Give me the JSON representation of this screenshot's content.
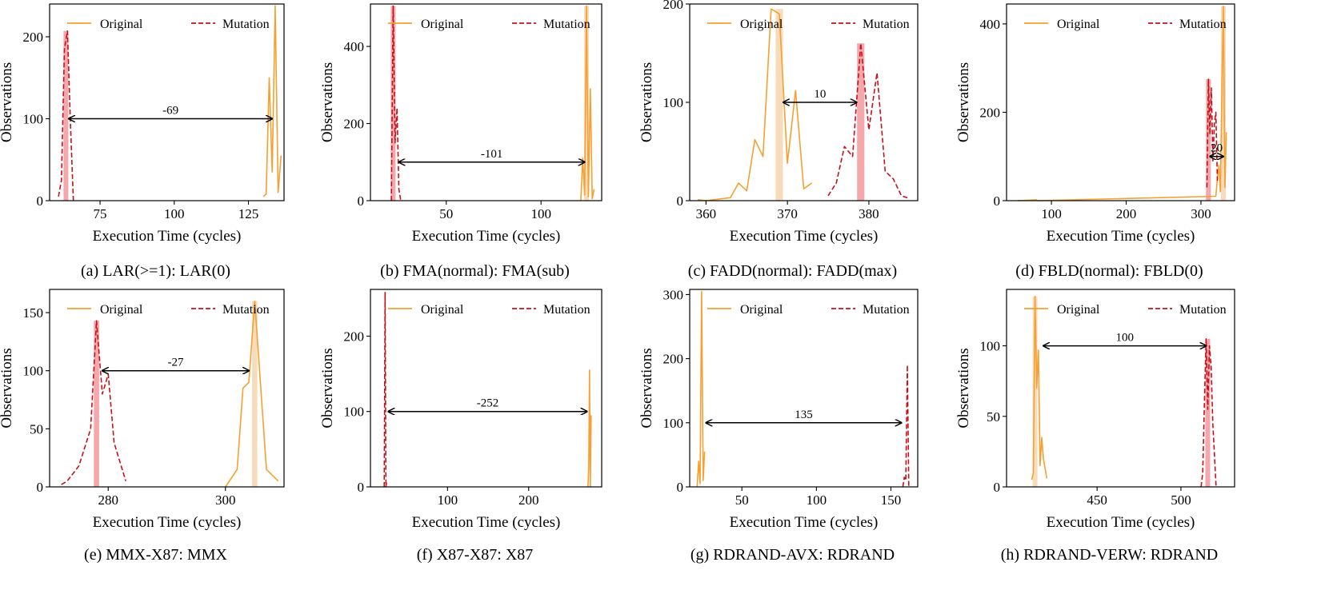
{
  "figure": {
    "panel_count": 8
  },
  "colors": {
    "original": "#f5a030",
    "mutation": "#c8101a",
    "original_bar": "#f7dcbc",
    "mutation_bar": "#f5a8ac",
    "arrow": "#000000"
  },
  "chart_data": [
    {
      "type": "line",
      "caption": "(a) LAR(>=1): LAR(0)",
      "xlabel": "Execution Time (cycles)",
      "ylabel": "Observations",
      "xlim": [
        58,
        137
      ],
      "ylim": [
        0,
        240
      ],
      "xticks": [
        75,
        100,
        125
      ],
      "yticks": [
        0,
        100,
        200
      ],
      "legend": [
        "Original",
        "Mutation"
      ],
      "series": [
        {
          "name": "Original",
          "style": "solid",
          "x": [
            130,
            131,
            132,
            133,
            134,
            135,
            136
          ],
          "y": [
            5,
            8,
            150,
            35,
            238,
            10,
            55
          ]
        },
        {
          "name": "Mutation",
          "style": "dashed",
          "x": [
            61,
            62,
            63,
            64,
            65,
            66
          ],
          "y": [
            5,
            25,
            185,
            207,
            95,
            0
          ]
        }
      ],
      "bars": [
        {
          "series": "Mutation",
          "x": 63.5,
          "height": 207
        }
      ],
      "arrow": {
        "from": 64.5,
        "to": 133,
        "y": 100,
        "label": "-69"
      }
    },
    {
      "type": "line",
      "caption": "(b) FMA(normal): FMA(sub)",
      "xlabel": "Execution Time (cycles)",
      "ylabel": "Observations",
      "xlim": [
        10,
        132
      ],
      "ylim": [
        0,
        510
      ],
      "xticks": [
        50,
        100
      ],
      "yticks": [
        0,
        200,
        400
      ],
      "legend": [
        "Original",
        "Mutation"
      ],
      "series": [
        {
          "name": "Original",
          "style": "solid",
          "x": [
            121,
            122,
            123,
            124,
            125,
            126,
            127,
            128
          ],
          "y": [
            0,
            110,
            15,
            505,
            10,
            290,
            5,
            30
          ]
        },
        {
          "name": "Mutation",
          "style": "dashed",
          "x": [
            21,
            22,
            23,
            24,
            25,
            26
          ],
          "y": [
            0,
            505,
            150,
            240,
            30,
            0
          ]
        }
      ],
      "bars": [
        {
          "series": "Original",
          "x": 124,
          "height": 505
        },
        {
          "series": "Mutation",
          "x": 22,
          "height": 505
        }
      ],
      "arrow": {
        "from": 25,
        "to": 123,
        "y": 100,
        "label": "-101"
      }
    },
    {
      "type": "line",
      "caption": "(c) FADD(normal): FADD(max)",
      "xlabel": "Execution Time (cycles)",
      "ylabel": "Observations",
      "xlim": [
        358,
        386
      ],
      "ylim": [
        0,
        200
      ],
      "xticks": [
        360,
        370,
        380
      ],
      "yticks": [
        0,
        100,
        200
      ],
      "legend": [
        "Original",
        "Mutation"
      ],
      "series": [
        {
          "name": "Original",
          "style": "solid",
          "x": [
            359,
            360,
            362,
            363,
            364,
            365,
            366,
            367,
            368,
            369,
            370,
            371,
            372,
            373
          ],
          "y": [
            1,
            0,
            2,
            3,
            18,
            10,
            62,
            45,
            195,
            190,
            38,
            112,
            12,
            18
          ]
        },
        {
          "name": "Mutation",
          "style": "dashed",
          "x": [
            375,
            376,
            377,
            378,
            379,
            380,
            381,
            382,
            383,
            384,
            385
          ],
          "y": [
            5,
            18,
            55,
            45,
            160,
            72,
            130,
            30,
            22,
            5,
            2
          ]
        }
      ],
      "bars": [
        {
          "series": "Original",
          "x": 369,
          "height": 195
        },
        {
          "series": "Mutation",
          "x": 379,
          "height": 160
        }
      ],
      "arrow": {
        "from": 369.5,
        "to": 378.5,
        "y": 100,
        "label": "10"
      }
    },
    {
      "type": "line",
      "caption": "(d) FBLD(normal): FBLD(0)",
      "xlabel": "Execution Time (cycles)",
      "ylabel": "Observations",
      "xlim": [
        40,
        345
      ],
      "ylim": [
        0,
        445
      ],
      "xticks": [
        100,
        200,
        300
      ],
      "yticks": [
        0,
        200,
        400
      ],
      "legend": [
        "Original",
        "Mutation"
      ],
      "series": [
        {
          "name": "Original",
          "style": "solid",
          "x": [
            55,
            56,
            80,
            81,
            320,
            322,
            324,
            326,
            328,
            330,
            332,
            334
          ],
          "y": [
            1,
            0,
            2,
            0,
            10,
            50,
            80,
            20,
            245,
            440,
            30,
            155
          ]
        },
        {
          "name": "Mutation",
          "style": "dashed",
          "x": [
            308,
            310,
            312,
            314,
            316,
            318,
            320,
            322
          ],
          "y": [
            30,
            275,
            150,
            255,
            90,
            175,
            200,
            45
          ]
        }
      ],
      "bars": [
        {
          "series": "Original",
          "x": 330,
          "height": 440
        },
        {
          "series": "Mutation",
          "x": 310,
          "height": 275
        }
      ],
      "arrow": {
        "from": 312,
        "to": 330,
        "y": 100,
        "label": "20"
      }
    },
    {
      "type": "line",
      "caption": "(e) MMX-X87: MMX",
      "xlabel": "Execution Time (cycles)",
      "ylabel": "Observations",
      "xlim": [
        270,
        310
      ],
      "ylim": [
        0,
        170
      ],
      "xticks": [
        280,
        300
      ],
      "yticks": [
        0,
        50,
        100,
        150
      ],
      "legend": [
        "Original",
        "Mutation"
      ],
      "series": [
        {
          "name": "Original",
          "style": "solid",
          "x": [
            300,
            302,
            303,
            304,
            305,
            307,
            309
          ],
          "y": [
            0,
            15,
            85,
            90,
            160,
            15,
            5
          ]
        },
        {
          "name": "Mutation",
          "style": "dashed",
          "x": [
            272,
            273,
            275,
            277,
            278,
            279,
            280,
            281,
            283
          ],
          "y": [
            2,
            5,
            18,
            50,
            143,
            80,
            97,
            38,
            5
          ]
        }
      ],
      "bars": [
        {
          "series": "Original",
          "x": 305,
          "height": 160
        },
        {
          "series": "Mutation",
          "x": 278,
          "height": 143
        }
      ],
      "arrow": {
        "from": 279,
        "to": 304,
        "y": 100,
        "label": "-27"
      }
    },
    {
      "type": "line",
      "caption": "(f) X87-X87: X87",
      "xlabel": "Execution Time (cycles)",
      "ylabel": "Observations",
      "xlim": [
        5,
        290
      ],
      "ylim": [
        0,
        262
      ],
      "xticks": [
        100,
        200
      ],
      "yticks": [
        0,
        100,
        200
      ],
      "legend": [
        "Original",
        "Mutation"
      ],
      "series": [
        {
          "name": "Original",
          "style": "solid",
          "x": [
            273,
            274,
            275,
            276,
            277
          ],
          "y": [
            0,
            25,
            155,
            0,
            95
          ]
        },
        {
          "name": "Mutation",
          "style": "dashed",
          "x": [
            22,
            23,
            24,
            25
          ],
          "y": [
            0,
            258,
            0,
            8
          ]
        }
      ],
      "bars": [],
      "arrow": {
        "from": 27,
        "to": 272,
        "y": 100,
        "label": "-252"
      }
    },
    {
      "type": "line",
      "caption": "(g) RDRAND-AVX: RDRAND",
      "xlabel": "Execution Time (cycles)",
      "ylabel": "Observations",
      "xlim": [
        15,
        168
      ],
      "ylim": [
        0,
        308
      ],
      "xticks": [
        50,
        100,
        150
      ],
      "yticks": [
        0,
        100,
        200,
        300
      ],
      "legend": [
        "Original",
        "Mutation"
      ],
      "series": [
        {
          "name": "Original",
          "style": "solid",
          "x": [
            20,
            21,
            22,
            23,
            24,
            25
          ],
          "y": [
            0,
            40,
            5,
            305,
            10,
            55
          ]
        },
        {
          "name": "Mutation",
          "style": "dashed",
          "x": [
            158,
            159,
            160,
            161,
            162
          ],
          "y": [
            0,
            15,
            10,
            190,
            0
          ]
        }
      ],
      "bars": [],
      "arrow": {
        "from": 26,
        "to": 157,
        "y": 100,
        "label": "135"
      }
    },
    {
      "type": "line",
      "caption": "(h) RDRAND-VERW: RDRAND",
      "xlabel": "Execution Time (cycles)",
      "ylabel": "Observations",
      "xlim": [
        396,
        532
      ],
      "ylim": [
        0,
        140
      ],
      "xticks": [
        450,
        500
      ],
      "yticks": [
        0,
        50,
        100
      ],
      "legend": [
        "Original",
        "Mutation"
      ],
      "series": [
        {
          "name": "Original",
          "style": "solid",
          "x": [
            411,
            412,
            413,
            414,
            415,
            416,
            417,
            418,
            420
          ],
          "y": [
            5,
            10,
            135,
            70,
            97,
            15,
            35,
            20,
            6
          ]
        },
        {
          "name": "Mutation",
          "style": "dashed",
          "x": [
            512,
            513,
            514,
            515,
            516,
            517,
            518,
            519,
            521
          ],
          "y": [
            0,
            10,
            60,
            105,
            55,
            100,
            85,
            45,
            0
          ]
        }
      ],
      "bars": [
        {
          "series": "Original",
          "x": 413,
          "height": 135
        },
        {
          "series": "Mutation",
          "x": 516,
          "height": 105
        }
      ],
      "arrow": {
        "from": 418,
        "to": 515,
        "y": 100,
        "label": "100"
      }
    }
  ]
}
